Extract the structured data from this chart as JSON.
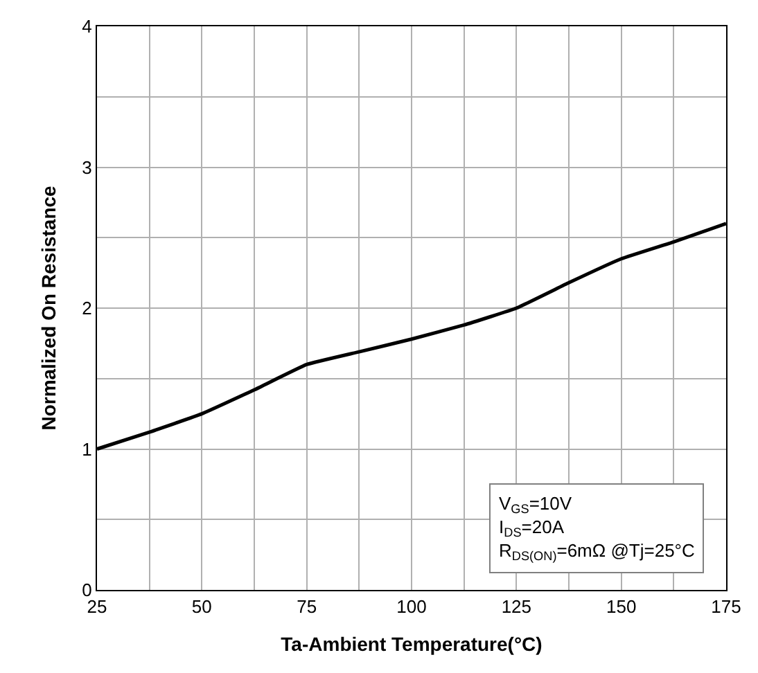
{
  "chart_data": {
    "type": "line",
    "xlabel": "Ta-Ambient Temperature(°C)",
    "ylabel": "Normalized On Resistance",
    "x": [
      25,
      37.5,
      50,
      62.5,
      75,
      87.5,
      100,
      112.5,
      125,
      137.5,
      150,
      162.5,
      175
    ],
    "series": [
      {
        "color": "#000000",
        "values": [
          1.0,
          1.12,
          1.25,
          1.42,
          1.6,
          1.69,
          1.78,
          1.88,
          2.0,
          2.18,
          2.35,
          2.47,
          2.6
        ]
      }
    ],
    "xlim": [
      25,
      175
    ],
    "xticks": [
      25,
      {
        "value": 37.5,
        "label": null
      },
      50,
      {
        "value": 62.5,
        "label": null
      },
      75,
      {
        "value": 87.5,
        "label": null
      },
      100,
      {
        "value": 112.5,
        "label": null
      },
      125,
      {
        "value": 137.5,
        "label": null
      },
      150,
      {
        "value": 162.5,
        "label": null
      },
      175
    ],
    "ylim": [
      0,
      4
    ],
    "yticks": [
      0,
      {
        "value": 0.5,
        "label": null
      },
      1,
      {
        "value": 1.5,
        "label": null
      },
      2,
      {
        "value": 2.5,
        "label": null
      },
      3,
      {
        "value": 3.5,
        "label": null
      },
      4
    ],
    "grid": true,
    "marker": "none",
    "line_style": "solid",
    "annotations": [
      "V$_{GS}$=10V\nI$_{DS}$=20A\nR$_{DS(ON)}$=6mΩ @Tj=25°C"
    ]
  }
}
